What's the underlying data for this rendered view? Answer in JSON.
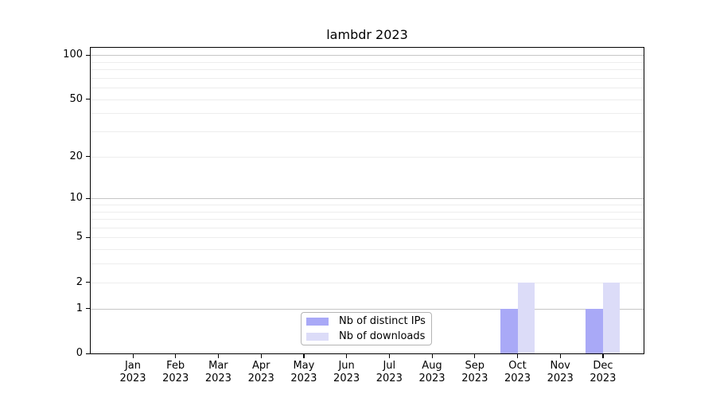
{
  "title": "lambdr 2023",
  "chart_data": {
    "type": "bar",
    "title": "lambdr 2023",
    "categories": [
      "Jan",
      "Feb",
      "Mar",
      "Apr",
      "May",
      "Jun",
      "Jul",
      "Aug",
      "Sep",
      "Oct",
      "Nov",
      "Dec"
    ],
    "category_year": "2023",
    "series": [
      {
        "name": "Nb of distinct IPs",
        "color": "#a9a9f7",
        "values": [
          0,
          0,
          0,
          0,
          0,
          0,
          0,
          0,
          0,
          1,
          0,
          1
        ]
      },
      {
        "name": "Nb of downloads",
        "color": "#dcdcf8",
        "values": [
          0,
          0,
          0,
          0,
          0,
          0,
          0,
          0,
          0,
          2,
          0,
          2
        ]
      }
    ],
    "xlabel": "",
    "ylabel": "",
    "y_scale": "log1p",
    "ylim": [
      0,
      112
    ],
    "y_tick_values": [
      0,
      1,
      2,
      5,
      10,
      20,
      50,
      100
    ],
    "y_major_gridlines": [
      1,
      10,
      100
    ],
    "y_minor_gridlines": [
      2,
      3,
      4,
      5,
      6,
      7,
      8,
      9,
      20,
      30,
      40,
      50,
      60,
      70,
      80,
      90
    ],
    "grid": true,
    "legend_position": "bottom-center"
  },
  "legend": {
    "items": [
      {
        "label": "Nb of distinct IPs",
        "color": "#a9a9f7"
      },
      {
        "label": "Nb of downloads",
        "color": "#dcdcf8"
      }
    ]
  },
  "colors": {
    "background": "#ffffff",
    "spine": "#000000",
    "major_grid": "#c6c6c6",
    "minor_grid": "#ededed",
    "bar_distinct_ips": "#a9a9f7",
    "bar_downloads": "#dcdcf8"
  }
}
